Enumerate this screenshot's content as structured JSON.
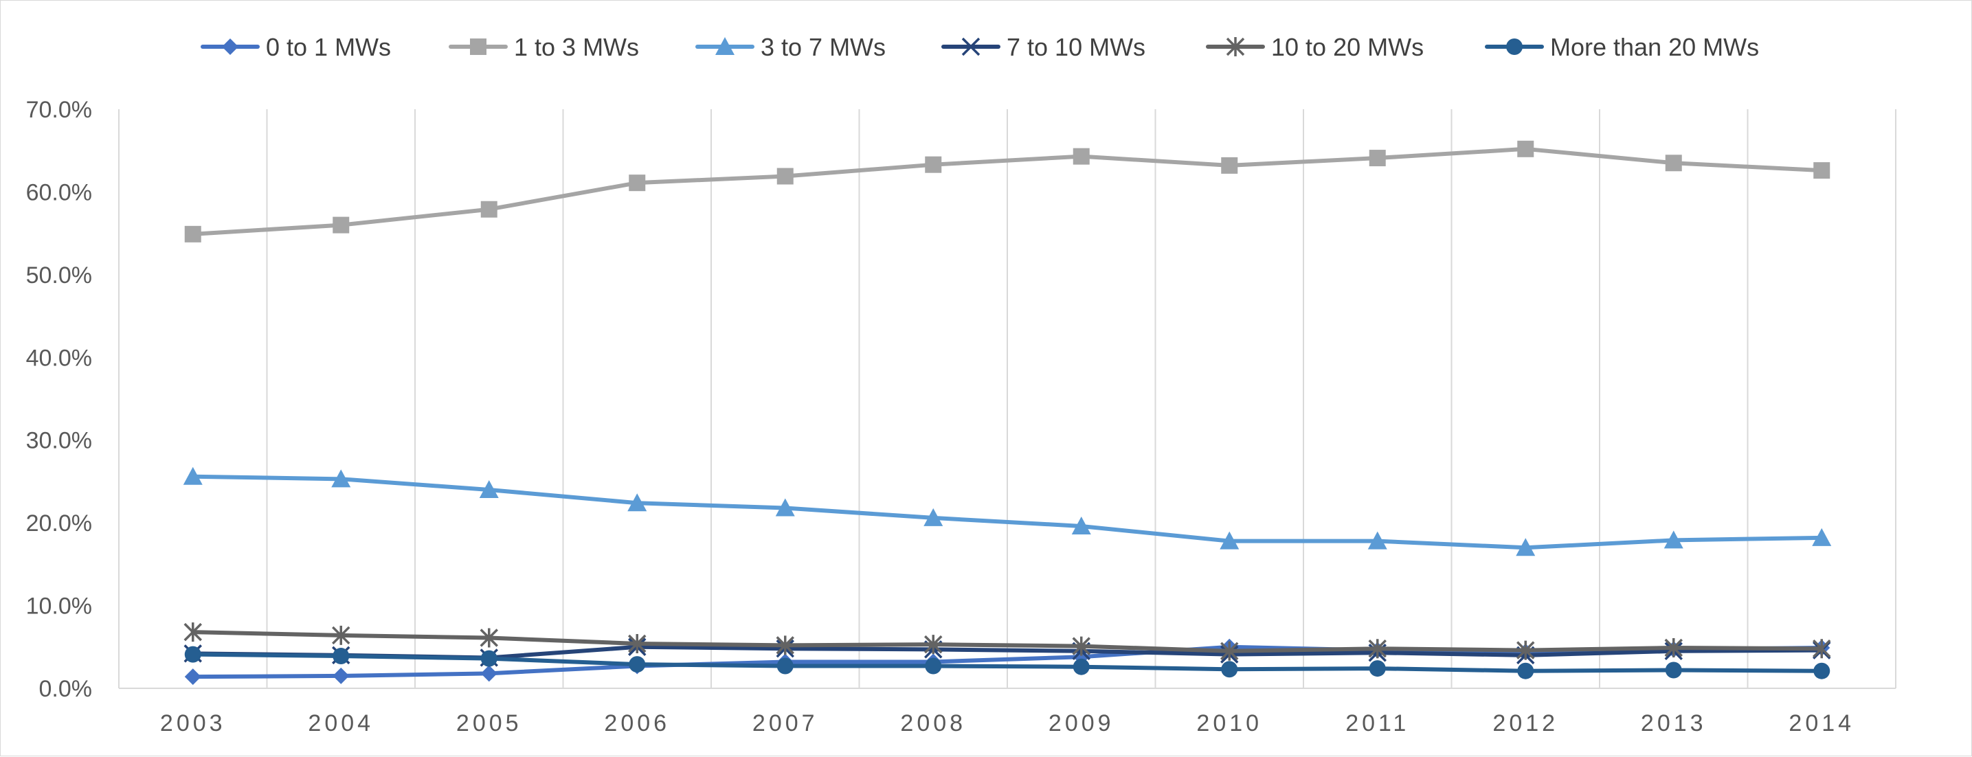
{
  "chart_data": {
    "type": "line",
    "title": "",
    "xlabel": "",
    "ylabel": "",
    "categories": [
      "2003",
      "2004",
      "2005",
      "2006",
      "2007",
      "2008",
      "2009",
      "2010",
      "2011",
      "2012",
      "2013",
      "2014"
    ],
    "ylim": [
      0,
      0.7
    ],
    "y_ticks": [
      0,
      0.1,
      0.2,
      0.3,
      0.4,
      0.5,
      0.6,
      0.7
    ],
    "y_tick_labels": [
      "0.0%",
      "10.0%",
      "20.0%",
      "30.0%",
      "40.0%",
      "50.0%",
      "60.0%",
      "70.0%"
    ],
    "grid": "vertical",
    "legend_position": "top",
    "series": [
      {
        "name": "0 to 1 MWs",
        "color": "#4472c4",
        "marker": "diamond",
        "values": [
          0.014,
          0.015,
          0.018,
          0.027,
          0.032,
          0.032,
          0.038,
          0.05,
          0.046,
          0.044,
          0.047,
          0.049
        ]
      },
      {
        "name": "1 to 3 MWs",
        "color": "#a5a5a5",
        "marker": "square",
        "values": [
          0.549,
          0.56,
          0.579,
          0.611,
          0.619,
          0.633,
          0.643,
          0.632,
          0.641,
          0.652,
          0.635,
          0.626
        ]
      },
      {
        "name": "3 to 7 MWs",
        "color": "#5b9bd5",
        "marker": "triangle",
        "values": [
          0.256,
          0.253,
          0.24,
          0.224,
          0.218,
          0.206,
          0.196,
          0.178,
          0.178,
          0.17,
          0.179,
          0.182
        ]
      },
      {
        "name": "7 to 10 MWs",
        "color": "#264478",
        "marker": "x",
        "values": [
          0.042,
          0.04,
          0.037,
          0.05,
          0.048,
          0.047,
          0.045,
          0.041,
          0.043,
          0.04,
          0.045,
          0.046
        ]
      },
      {
        "name": "10 to 20 MWs",
        "color": "#636363",
        "marker": "star",
        "values": [
          0.068,
          0.064,
          0.061,
          0.054,
          0.052,
          0.053,
          0.051,
          0.045,
          0.048,
          0.046,
          0.049,
          0.048
        ]
      },
      {
        "name": "More than 20 MWs",
        "color": "#255e91",
        "marker": "circle",
        "values": [
          0.041,
          0.039,
          0.036,
          0.029,
          0.027,
          0.027,
          0.026,
          0.023,
          0.024,
          0.021,
          0.022,
          0.021
        ]
      }
    ]
  }
}
